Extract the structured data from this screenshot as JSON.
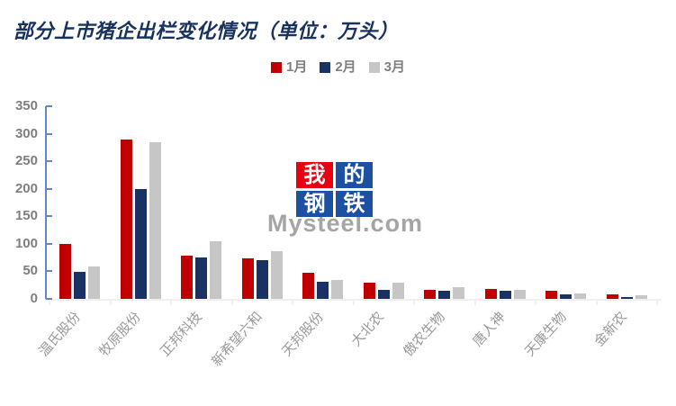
{
  "title": "部分上市猪企出栏变化情况（单位：万头）",
  "legend": [
    {
      "label": "1月",
      "color": "#C00000"
    },
    {
      "label": "2月",
      "color": "#1A3263"
    },
    {
      "label": "3月",
      "color": "#C6C6C6"
    }
  ],
  "chart_data": {
    "type": "bar",
    "title": "部分上市猪企出栏变化情况（单位：万头）",
    "categories": [
      "温氏股份",
      "牧原股份",
      "正邦科技",
      "新希望六和",
      "天邦股份",
      "大北农",
      "傲农生物",
      "唐人神",
      "天康生物",
      "金新农"
    ],
    "series": [
      {
        "name": "1月",
        "color": "#C00000",
        "values": [
          100,
          290,
          79,
          74,
          47,
          30,
          16,
          18,
          15,
          8
        ]
      },
      {
        "name": "2月",
        "color": "#1A3263",
        "values": [
          49,
          200,
          75,
          70,
          31,
          17,
          14,
          15,
          8,
          3
        ]
      },
      {
        "name": "3月",
        "color": "#C6C6C6",
        "values": [
          59,
          285,
          105,
          87,
          34,
          29,
          22,
          16,
          10,
          7
        ]
      }
    ],
    "xlabel": "",
    "ylabel": "",
    "ylim": [
      0,
      350
    ],
    "yticks": [
      0,
      50,
      100,
      150,
      200,
      250,
      300,
      350
    ],
    "grid": false,
    "legend_position": "top-center"
  },
  "watermark": {
    "blocks": [
      {
        "char": "我",
        "bg": "#E60012"
      },
      {
        "char": "的",
        "bg": "#1D50A2"
      },
      {
        "char": "钢",
        "bg": "#1D50A2"
      },
      {
        "char": "铁",
        "bg": "#1D50A2"
      }
    ],
    "site": "Mysteel.com"
  },
  "colors": {
    "title": "#17325F",
    "y_axis_line": "#6187C6",
    "x_axis_line": "#F0F0F0",
    "axis_label_gray": "#7F7F7F",
    "category_label_gray": "#9A9A9A",
    "background": "#FFFFFF"
  }
}
